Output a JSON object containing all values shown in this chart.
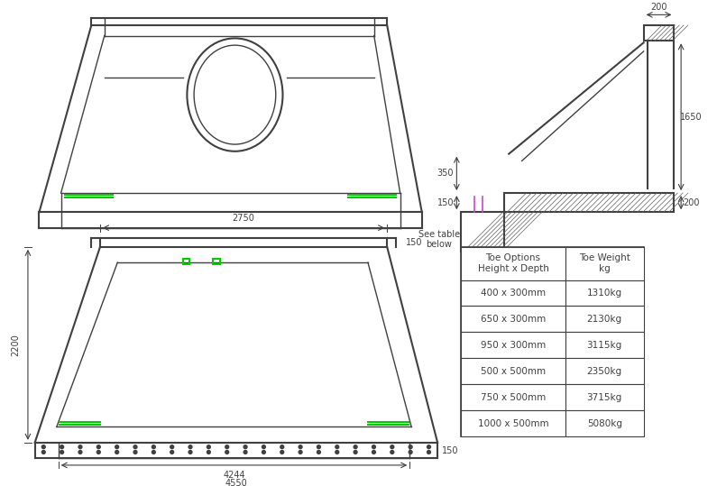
{
  "bg_color": "#ffffff",
  "line_color": "#404040",
  "green_color": "#00cc00",
  "hatch_color": "#606060",
  "dim_color": "#404040",
  "magenta_color": "#cc44cc",
  "table_data": [
    [
      "400 x 300mm",
      "1310kg"
    ],
    [
      "650 x 300mm",
      "2130kg"
    ],
    [
      "950 x 300mm",
      "3115kg"
    ],
    [
      "500 x 500mm",
      "2350kg"
    ],
    [
      "750 x 500mm",
      "3715kg"
    ],
    [
      "1000 x 500mm",
      "5080kg"
    ]
  ],
  "table_headers": [
    "Toe Options\nHeight x Depth",
    "Toe Weight\nkg"
  ]
}
